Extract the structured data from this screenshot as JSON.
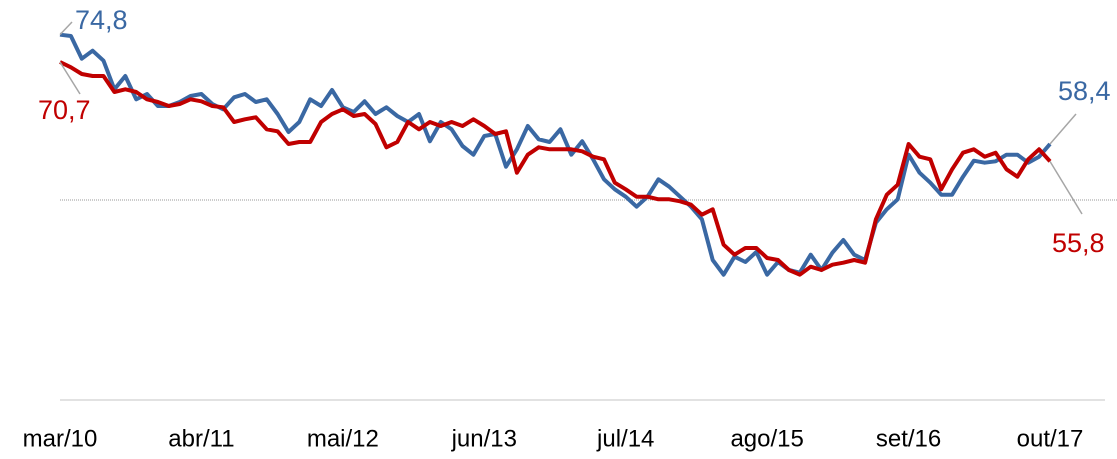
{
  "chart_data": {
    "type": "line",
    "categories": [
      "mar/10",
      null,
      null,
      null,
      null,
      null,
      null,
      null,
      null,
      null,
      null,
      null,
      null,
      "abr/11",
      null,
      null,
      null,
      null,
      null,
      null,
      null,
      null,
      null,
      null,
      null,
      null,
      "mai/12",
      null,
      null,
      null,
      null,
      null,
      null,
      null,
      null,
      null,
      null,
      null,
      null,
      "jun/13",
      null,
      null,
      null,
      null,
      null,
      null,
      null,
      null,
      null,
      null,
      null,
      null,
      "jul/14",
      null,
      null,
      null,
      null,
      null,
      null,
      null,
      null,
      null,
      null,
      null,
      null,
      "ago/15",
      null,
      null,
      null,
      null,
      null,
      null,
      null,
      null,
      null,
      null,
      null,
      null,
      "set/16",
      null,
      null,
      null,
      null,
      null,
      null,
      null,
      null,
      null,
      null,
      null,
      null,
      "out/17"
    ],
    "series": [
      {
        "color": "#3a68a3",
        "values": [
          74.8,
          74.6,
          71.2,
          72.4,
          70.9,
          66.6,
          68.6,
          65.1,
          65.9,
          64.1,
          64.1,
          64.7,
          65.6,
          65.9,
          64.4,
          63.6,
          65.4,
          65.9,
          64.7,
          65.1,
          62.9,
          60.2,
          61.7,
          65.1,
          64.1,
          66.5,
          63.9,
          63.2,
          64.8,
          62.9,
          63.9,
          62.6,
          61.7,
          62.9,
          58.8,
          61.7,
          60.6,
          58.1,
          56.8,
          59.6,
          59.9,
          55.0,
          57.6,
          61.1,
          59.1,
          58.7,
          60.6,
          56.8,
          58.8,
          56.1,
          53.1,
          51.6,
          50.5,
          49.0,
          50.5,
          53.1,
          52.0,
          50.5,
          49.0,
          47.1,
          41.0,
          38.8,
          41.5,
          40.7,
          42.2,
          38.8,
          40.7,
          39.5,
          39.1,
          41.8,
          39.5,
          42.1,
          44.0,
          41.8,
          41.0,
          46.6,
          48.6,
          50.1,
          56.8,
          54.1,
          52.6,
          50.8,
          50.8,
          53.5,
          55.9,
          55.6,
          55.8,
          56.8,
          56.8,
          55.6,
          56.5,
          58.4
        ],
        "value_labels": [
          "74,8",
          null,
          null,
          null,
          null,
          null,
          null,
          null,
          null,
          null,
          null,
          null,
          null,
          null,
          null,
          null,
          null,
          null,
          null,
          null,
          null,
          null,
          null,
          null,
          null,
          null,
          null,
          null,
          null,
          null,
          null,
          null,
          null,
          null,
          null,
          null,
          null,
          null,
          null,
          null,
          null,
          null,
          null,
          null,
          null,
          null,
          null,
          null,
          null,
          null,
          null,
          null,
          null,
          null,
          null,
          null,
          null,
          null,
          null,
          null,
          null,
          null,
          null,
          null,
          null,
          null,
          null,
          null,
          null,
          null,
          null,
          null,
          null,
          null,
          null,
          null,
          null,
          null,
          null,
          null,
          null,
          null,
          null,
          null,
          null,
          null,
          null,
          null,
          null,
          null,
          null,
          "58,4"
        ]
      },
      {
        "color": "#c00000",
        "values": [
          70.7,
          69.9,
          68.9,
          68.6,
          68.6,
          66.2,
          66.6,
          66.2,
          65.1,
          64.7,
          64.1,
          64.4,
          65.1,
          64.8,
          64.1,
          63.9,
          61.7,
          62.1,
          62.4,
          60.6,
          60.3,
          58.4,
          58.7,
          58.7,
          61.7,
          62.9,
          63.6,
          62.6,
          62.9,
          61.4,
          57.9,
          58.7,
          61.7,
          60.6,
          61.7,
          61.1,
          61.7,
          61.1,
          62.1,
          61.1,
          59.9,
          60.3,
          54.1,
          56.8,
          57.9,
          57.6,
          57.6,
          57.6,
          57.3,
          56.5,
          56.1,
          52.6,
          51.6,
          50.5,
          50.5,
          50.1,
          50.1,
          49.8,
          49.3,
          47.8,
          48.6,
          43.3,
          41.8,
          42.8,
          42.8,
          41.3,
          41.0,
          39.5,
          38.8,
          40.0,
          39.5,
          40.3,
          40.6,
          41.0,
          40.6,
          47.1,
          50.8,
          52.3,
          58.4,
          56.5,
          56.1,
          51.6,
          54.6,
          57.1,
          57.6,
          56.5,
          57.1,
          54.6,
          53.5,
          56.1,
          57.6,
          55.8
        ],
        "value_labels": [
          "70,7",
          null,
          null,
          null,
          null,
          null,
          null,
          null,
          null,
          null,
          null,
          null,
          null,
          null,
          null,
          null,
          null,
          null,
          null,
          null,
          null,
          null,
          null,
          null,
          null,
          null,
          null,
          null,
          null,
          null,
          null,
          null,
          null,
          null,
          null,
          null,
          null,
          null,
          null,
          null,
          null,
          null,
          null,
          null,
          null,
          null,
          null,
          null,
          null,
          null,
          null,
          null,
          null,
          null,
          null,
          null,
          null,
          null,
          null,
          null,
          null,
          null,
          null,
          null,
          null,
          null,
          null,
          null,
          null,
          null,
          null,
          null,
          null,
          null,
          null,
          null,
          null,
          null,
          null,
          null,
          null,
          null,
          null,
          null,
          null,
          null,
          null,
          null,
          null,
          null,
          null,
          "55,8"
        ]
      }
    ],
    "ylim": [
      20,
      80
    ],
    "reference_line": 50
  }
}
